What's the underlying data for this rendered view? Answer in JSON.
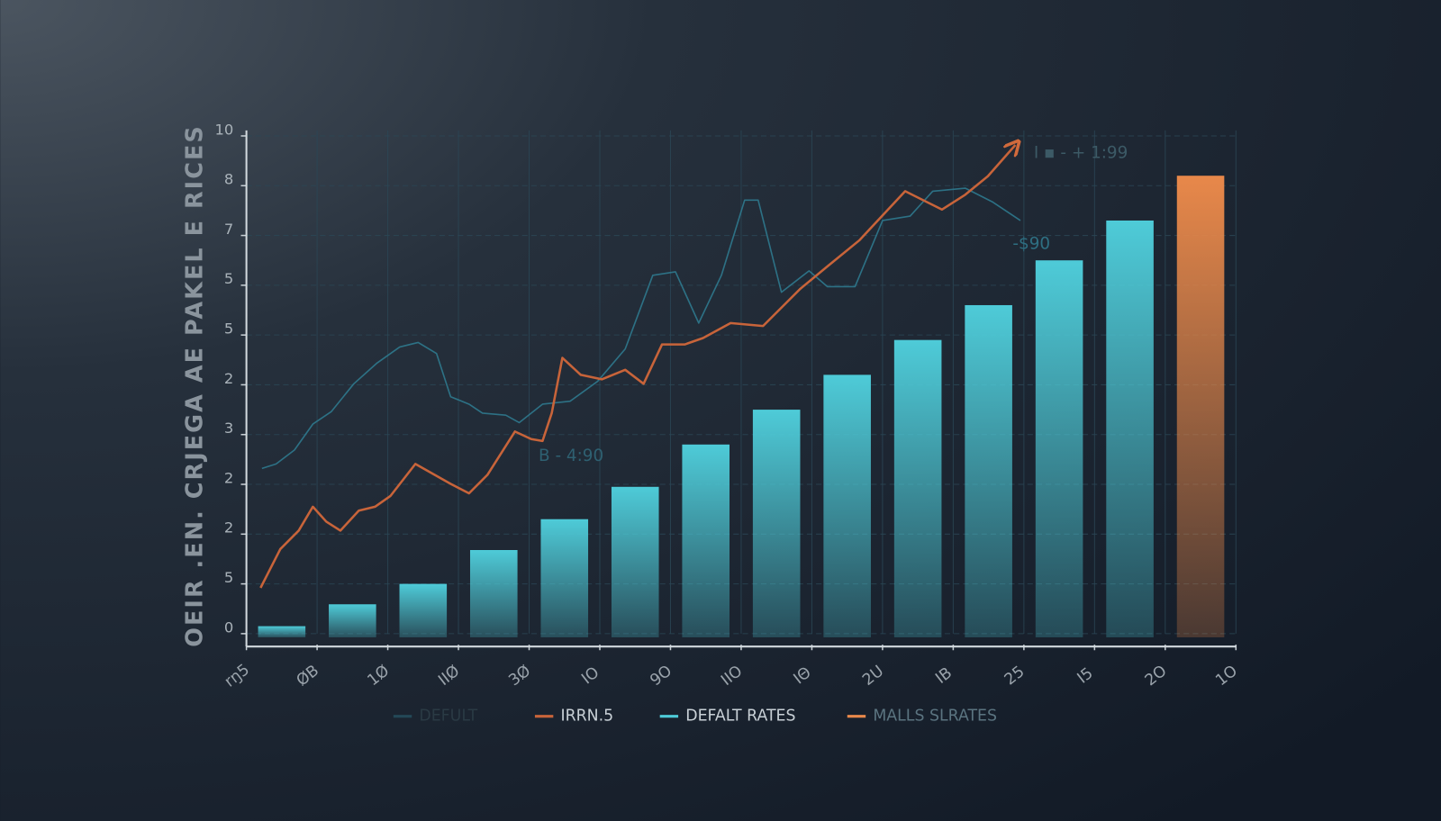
{
  "chart_data": {
    "type": "bar",
    "y_label": "OEIR .EN. CRJEGA AE PAKEL E RICES",
    "xlim": [
      0,
      14
    ],
    "xticks": [
      {
        "value": 0,
        "label": "rŋ5"
      },
      {
        "value": 1,
        "label": "ØB"
      },
      {
        "value": 2,
        "label": "1Ø"
      },
      {
        "value": 3,
        "label": "IIØ"
      },
      {
        "value": 4,
        "label": "3Ø"
      },
      {
        "value": 5,
        "label": "IO"
      },
      {
        "value": 6,
        "label": "9O"
      },
      {
        "value": 7,
        "label": "IIO"
      },
      {
        "value": 8,
        "label": "IΘ"
      },
      {
        "value": 9,
        "label": "2U"
      },
      {
        "value": 10,
        "label": "IB"
      },
      {
        "value": 11,
        "label": "25"
      },
      {
        "value": 12,
        "label": "I5"
      },
      {
        "value": 13,
        "label": "2O"
      },
      {
        "value": 14,
        "label": "1O"
      }
    ],
    "ylim": [
      0,
      10
    ],
    "yticks": [
      0,
      {
        "value": 1,
        "label": "5"
      },
      2,
      {
        "value": 3,
        "label": "2"
      },
      {
        "value": 4,
        "label": "3"
      },
      {
        "value": 5,
        "label": "2"
      },
      {
        "value": 6,
        "label": "5"
      },
      {
        "value": 7,
        "label": "5"
      },
      {
        "value": 8,
        "label": "7"
      },
      {
        "value": 9,
        "label": "8"
      },
      10
    ],
    "grid": true,
    "x": [
      0.5,
      1.5,
      2.5,
      3.5,
      4.5,
      5.5,
      6.5,
      7.5,
      8.5,
      9.5,
      10.5,
      11.5,
      12.5,
      13.5
    ],
    "series": [
      {
        "name": "DEFULT",
        "type": "line",
        "color": "#2f7e93",
        "x": [
          0.22,
          0.42,
          0.68,
          0.94,
          1.2,
          1.52,
          1.85,
          2.17,
          2.43,
          2.69,
          2.89,
          3.15,
          3.34,
          3.67,
          3.86,
          4.19,
          4.58,
          4.97,
          5.36,
          5.75,
          6.07,
          6.4,
          6.72,
          7.05,
          7.24,
          7.57,
          7.96,
          8.22,
          8.61,
          9.0,
          9.39,
          9.71,
          10.17,
          10.56,
          10.95
        ],
        "values": [
          3.32,
          3.41,
          3.69,
          4.21,
          4.46,
          5.02,
          5.44,
          5.76,
          5.85,
          5.63,
          4.76,
          4.61,
          4.43,
          4.39,
          4.24,
          4.61,
          4.67,
          5.07,
          5.72,
          7.2,
          7.27,
          6.24,
          7.2,
          8.71,
          8.71,
          6.86,
          7.29,
          6.97,
          6.97,
          8.3,
          8.39,
          8.89,
          8.95,
          8.67,
          8.3
        ]
      },
      {
        "name": "IRRN.5",
        "type": "line",
        "color": "#c8643a",
        "x": [
          0.2,
          0.48,
          0.74,
          0.94,
          1.13,
          1.33,
          1.59,
          1.82,
          2.04,
          2.39,
          2.89,
          3.15,
          3.41,
          3.8,
          4.03,
          4.19,
          4.32,
          4.47,
          4.73,
          5.03,
          5.36,
          5.62,
          5.88,
          6.2,
          6.46,
          6.85,
          7.31,
          7.83,
          8.22,
          8.67,
          9.32,
          9.84,
          10.17,
          10.49,
          10.88
        ],
        "values": [
          0.92,
          1.7,
          2.07,
          2.55,
          2.25,
          2.07,
          2.47,
          2.55,
          2.77,
          3.41,
          3.01,
          2.82,
          3.19,
          4.06,
          3.91,
          3.87,
          4.43,
          5.54,
          5.2,
          5.11,
          5.3,
          5.02,
          5.81,
          5.81,
          5.94,
          6.24,
          6.18,
          6.92,
          7.38,
          7.9,
          8.89,
          8.52,
          8.82,
          9.19,
          9.82
        ]
      },
      {
        "name": "DEFALT RATES",
        "type": "bar",
        "color": "#4ecbd8",
        "values": [
          0.15,
          0.59,
          1.0,
          1.68,
          2.3,
          2.95,
          3.8,
          4.5,
          5.2,
          5.9,
          6.6,
          7.5,
          8.3,
          null
        ]
      },
      {
        "name": "MALLS SLRATES",
        "type": "bar",
        "color": "#e8884a",
        "values": [
          null,
          null,
          null,
          null,
          null,
          null,
          null,
          null,
          null,
          null,
          null,
          null,
          null,
          9.2
        ]
      }
    ],
    "annotations": [
      "I ▪ - + 1:99",
      "-$90",
      "B - 4:90"
    ]
  }
}
